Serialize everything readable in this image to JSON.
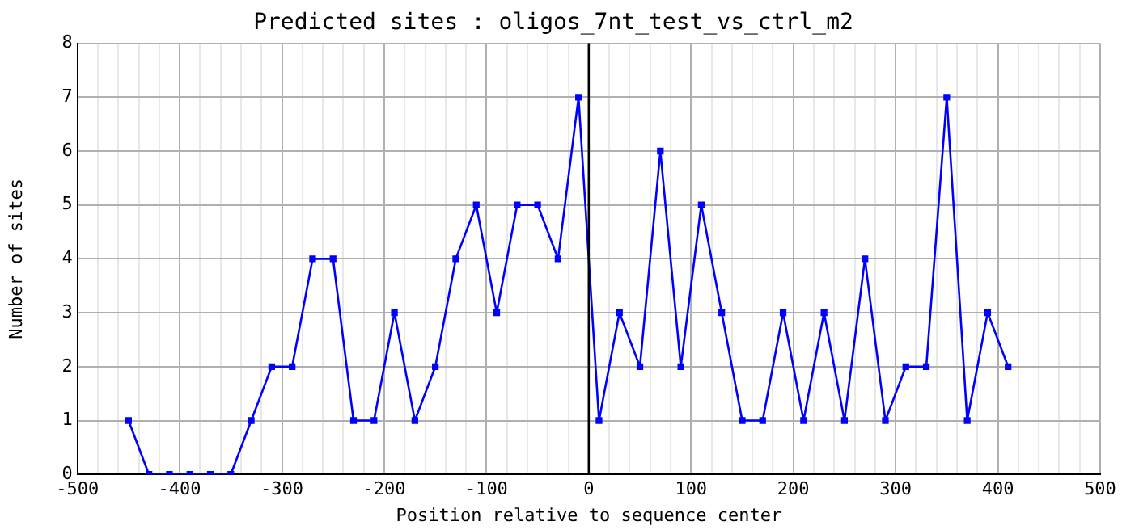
{
  "chart_data": {
    "type": "line",
    "title": "Predicted sites : oligos_7nt_test_vs_ctrl_m2",
    "xlabel": "Position relative to sequence center",
    "ylabel": "Number of sites",
    "x": [
      -450,
      -430,
      -410,
      -390,
      -370,
      -350,
      -330,
      -310,
      -290,
      -270,
      -250,
      -230,
      -210,
      -190,
      -170,
      -150,
      -130,
      -110,
      -90,
      -70,
      -50,
      -30,
      -10,
      10,
      30,
      50,
      70,
      90,
      110,
      130,
      150,
      170,
      190,
      210,
      230,
      250,
      270,
      290,
      310,
      330,
      350,
      370,
      390,
      410
    ],
    "series": [
      {
        "color": "#0000ff",
        "values": [
          1,
          0,
          0,
          0,
          0,
          0,
          1,
          2,
          2,
          4,
          4,
          1,
          1,
          3,
          1,
          2,
          4,
          5,
          3,
          5,
          5,
          4,
          7,
          1,
          3,
          2,
          6,
          2,
          5,
          3,
          1,
          1,
          3,
          1,
          3,
          1,
          4,
          1,
          2,
          2,
          7,
          1,
          3,
          2
        ]
      }
    ],
    "xlim": [
      -500,
      500
    ],
    "ylim": [
      0,
      8
    ],
    "xticks": [
      -500,
      {
        "value": -480,
        "label": null
      },
      {
        "value": -460,
        "label": null
      },
      {
        "value": -440,
        "label": null
      },
      {
        "value": -420,
        "label": null
      },
      -400,
      {
        "value": -380,
        "label": null
      },
      {
        "value": -360,
        "label": null
      },
      {
        "value": -340,
        "label": null
      },
      {
        "value": -320,
        "label": null
      },
      -300,
      {
        "value": -280,
        "label": null
      },
      {
        "value": -260,
        "label": null
      },
      {
        "value": -240,
        "label": null
      },
      {
        "value": -220,
        "label": null
      },
      -200,
      {
        "value": -180,
        "label": null
      },
      {
        "value": -160,
        "label": null
      },
      {
        "value": -140,
        "label": null
      },
      {
        "value": -120,
        "label": null
      },
      -100,
      {
        "value": -80,
        "label": null
      },
      {
        "value": -60,
        "label": null
      },
      {
        "value": -40,
        "label": null
      },
      {
        "value": -20,
        "label": null
      },
      0,
      {
        "value": 20,
        "label": null
      },
      {
        "value": 40,
        "label": null
      },
      {
        "value": 60,
        "label": null
      },
      {
        "value": 80,
        "label": null
      },
      100,
      {
        "value": 120,
        "label": null
      },
      {
        "value": 140,
        "label": null
      },
      {
        "value": 160,
        "label": null
      },
      {
        "value": 180,
        "label": null
      },
      200,
      {
        "value": 220,
        "label": null
      },
      {
        "value": 240,
        "label": null
      },
      {
        "value": 260,
        "label": null
      },
      {
        "value": 280,
        "label": null
      },
      300,
      {
        "value": 320,
        "label": null
      },
      {
        "value": 340,
        "label": null
      },
      {
        "value": 360,
        "label": null
      },
      {
        "value": 380,
        "label": null
      },
      400,
      {
        "value": 420,
        "label": null
      },
      {
        "value": 440,
        "label": null
      },
      {
        "value": 460,
        "label": null
      },
      {
        "value": 480,
        "label": null
      },
      500
    ],
    "yticks": [
      0,
      1,
      2,
      3,
      4,
      5,
      6,
      7,
      8
    ],
    "ref_lines": [
      {
        "axis": "x",
        "value": 0,
        "color": "#000000"
      }
    ],
    "grid": true,
    "legend": false,
    "marker": "square",
    "line_style": "solid"
  }
}
